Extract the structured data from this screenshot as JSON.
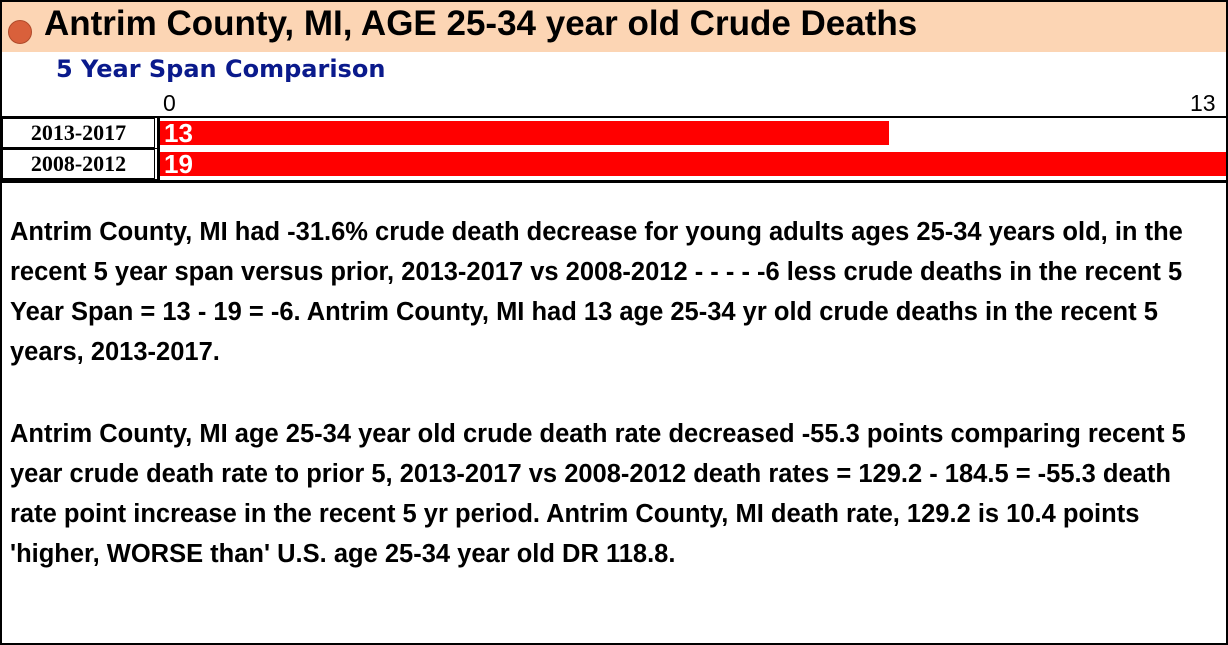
{
  "chart_data": {
    "type": "bar",
    "orientation": "horizontal",
    "title": "Antrim County, MI, AGE 25-34 year old Crude Deaths",
    "subtitle": "5 Year Span Comparison",
    "categories": [
      "2013-2017",
      "2008-2012"
    ],
    "values": [
      13,
      19
    ],
    "value_labels": [
      "13",
      "19"
    ],
    "axis_tick_labels": [
      "0",
      "13"
    ],
    "xlim": [
      0,
      19
    ],
    "bar_color": "#ff0000",
    "grid": false
  },
  "paragraphs": [
    "Antrim County, MI had -31.6% crude death decrease for young adults ages 25-34 years old, in the recent 5 year span versus prior, 2013-2017 vs 2008-2012 - - - -  -6 less crude deaths in the recent 5 Year Span = 13 - 19 = -6.  Antrim County, MI had 13 age 25-34 yr old crude deaths in the recent 5 years, 2013-2017.",
    "Antrim County, MI age 25-34 year old crude death rate decreased -55.3 points comparing recent 5 year crude death rate  to prior 5, 2013-2017 vs 2008-2012 death rates = 129.2 - 184.5 = -55.3 death rate point increase in the recent 5 yr period.  Antrim County, MI death rate, 129.2 is 10.4 points 'higher, WORSE than' U.S. age  25-34 year old DR 118.8."
  ],
  "colors": {
    "header_bg": "#fcd5b4",
    "bullet": "#d9603b",
    "subtitle": "#0a1a8c"
  }
}
